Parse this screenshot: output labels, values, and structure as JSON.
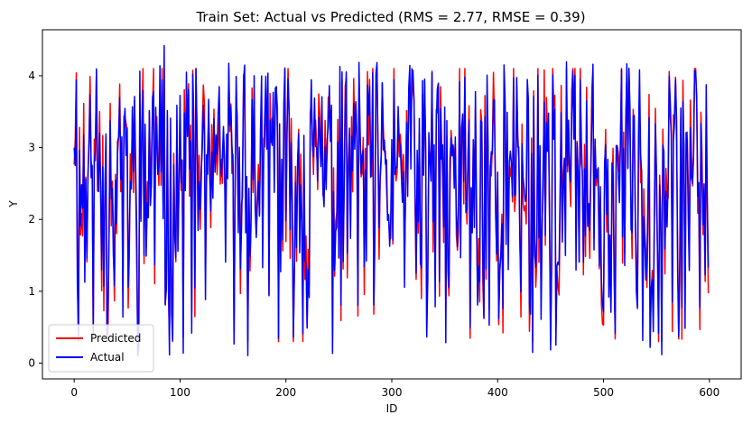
{
  "chart_data": {
    "type": "line",
    "title": "Train Set: Actual vs Predicted (RMS = 2.77, RMSE = 0.39)",
    "xlabel": "ID",
    "ylabel": "Y",
    "xlim": [
      -30,
      630
    ],
    "ylim": [
      -0.22,
      4.64
    ],
    "xticks": [
      0,
      100,
      200,
      300,
      400,
      500,
      600
    ],
    "yticks": [
      0,
      1,
      2,
      3,
      4
    ],
    "grid": false,
    "legend_position": "lower-left",
    "series": [
      {
        "name": "Predicted",
        "color": "#ff0000",
        "n_points": 600,
        "seed": 7,
        "approx_range": [
          0.3,
          4.1
        ]
      },
      {
        "name": "Actual",
        "color": "#0000ff",
        "n_points": 600,
        "seed": 11,
        "approx_range": [
          0.05,
          4.42
        ]
      }
    ]
  }
}
